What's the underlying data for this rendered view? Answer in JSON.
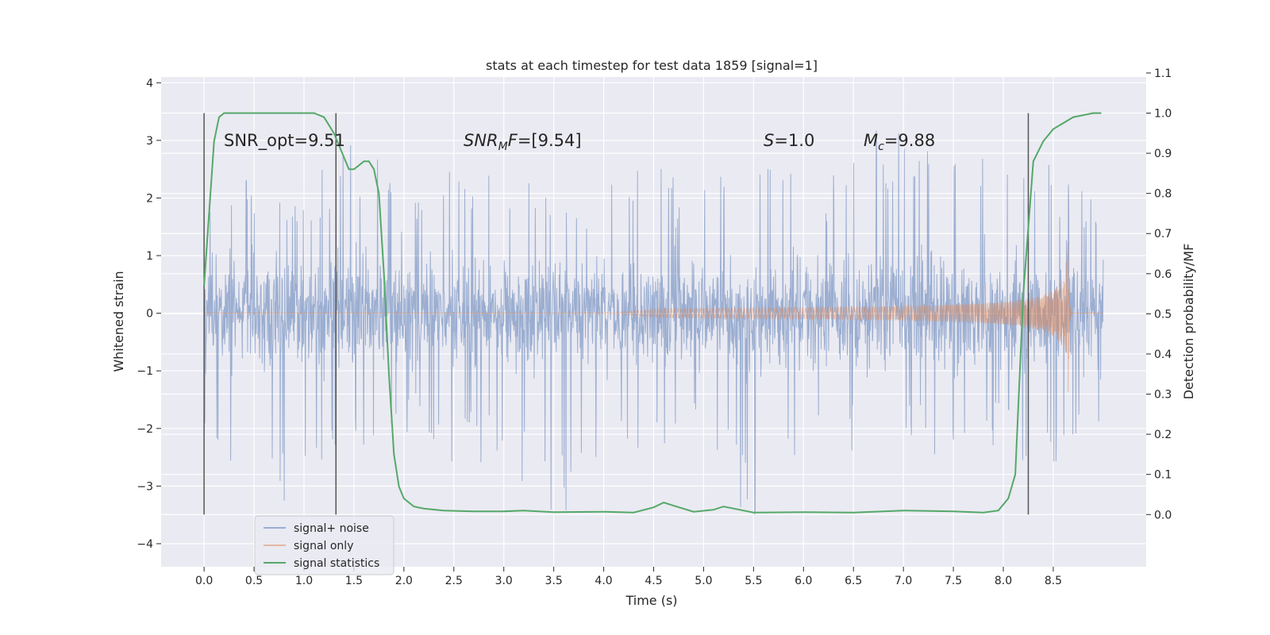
{
  "chart_data": {
    "type": "line",
    "title": "stats at each timestep for test data 1859 [signal=1]",
    "xlabel": "Time (s)",
    "ylabel_left": "Whitened strain",
    "ylabel_right": "Detection probability/MF",
    "xlim": [
      -0.43,
      9.43
    ],
    "ylim_left": [
      -4.4,
      4.1
    ],
    "ylim_right": [
      -0.13,
      1.09
    ],
    "x_ticks": [
      "0.0",
      "0.5",
      "1.0",
      "1.5",
      "2.0",
      "2.5",
      "3.0",
      "3.5",
      "4.0",
      "4.5",
      "5.0",
      "5.5",
      "6.0",
      "6.5",
      "7.0",
      "7.5",
      "8.0",
      "8.5"
    ],
    "y_ticks_left": [
      "−4",
      "−3",
      "−2",
      "−1",
      "0",
      "1",
      "2",
      "3",
      "4"
    ],
    "y_ticks_right": [
      "0.0",
      "0.1",
      "0.2",
      "0.3",
      "0.4",
      "0.5",
      "0.6",
      "0.7",
      "0.8",
      "0.9",
      "1.0",
      "1.1"
    ],
    "grid": true,
    "legend_placement": "lower-left",
    "annotations": {
      "snr_opt": "SNR_opt=9.51",
      "snr_mf": "=[9.54]",
      "s_value": "=1.0",
      "mc_value": "=9.88"
    },
    "vertical_markers_s": [
      0.0,
      1.32,
      8.25
    ],
    "series": [
      {
        "name": "signal+ noise",
        "color": "#4c72b0",
        "description_kind": "noisy strain, amplitude envelope",
        "envelope_x": [
          0.0,
          0.5,
          1.0,
          1.5,
          2.0,
          2.5,
          3.0,
          3.5,
          4.0,
          4.5,
          5.0,
          5.5,
          6.0,
          6.5,
          7.0,
          7.5,
          8.0,
          8.5,
          9.0
        ],
        "envelope_max": [
          2.5,
          2.3,
          2.4,
          3.5,
          2.2,
          2.6,
          2.5,
          2.5,
          2.4,
          2.6,
          2.3,
          2.6,
          2.5,
          2.7,
          3.8,
          3.6,
          2.6,
          2.6,
          1.8
        ],
        "envelope_min": [
          -2.3,
          -3.4,
          -3.4,
          -2.3,
          -2.4,
          -2.8,
          -2.5,
          -4.0,
          -2.6,
          -2.5,
          -2.6,
          -3.7,
          -2.5,
          -2.4,
          -2.5,
          -2.8,
          -2.4,
          -2.9,
          -1.8
        ]
      },
      {
        "name": "signal only",
        "color": "#dd8452",
        "description_kind": "chirp waveform",
        "chirp_start_s": 4.0,
        "merger_s": 8.65,
        "peak_amplitude": 1.5
      },
      {
        "name": "signal statistics",
        "color": "#55a868",
        "axis": "right",
        "x": [
          0.0,
          0.05,
          0.1,
          0.15,
          0.2,
          0.3,
          0.5,
          0.8,
          1.0,
          1.1,
          1.2,
          1.3,
          1.4,
          1.45,
          1.5,
          1.55,
          1.6,
          1.65,
          1.7,
          1.75,
          1.8,
          1.85,
          1.9,
          1.95,
          2.0,
          2.1,
          2.2,
          2.4,
          2.7,
          3.0,
          3.2,
          3.5,
          4.0,
          4.3,
          4.5,
          4.6,
          4.7,
          4.9,
          5.1,
          5.2,
          5.3,
          5.5,
          6.0,
          6.5,
          7.0,
          7.5,
          7.8,
          7.95,
          8.05,
          8.12,
          8.2,
          8.3,
          8.4,
          8.5,
          8.7,
          8.9,
          8.98
        ],
        "y": [
          0.57,
          0.75,
          0.93,
          0.99,
          1.0,
          1.0,
          1.0,
          1.0,
          1.0,
          1.0,
          0.99,
          0.95,
          0.89,
          0.86,
          0.86,
          0.87,
          0.88,
          0.88,
          0.86,
          0.8,
          0.6,
          0.35,
          0.15,
          0.07,
          0.04,
          0.02,
          0.015,
          0.01,
          0.008,
          0.008,
          0.01,
          0.006,
          0.007,
          0.005,
          0.018,
          0.03,
          0.022,
          0.007,
          0.012,
          0.02,
          0.015,
          0.005,
          0.006,
          0.005,
          0.01,
          0.008,
          0.005,
          0.01,
          0.04,
          0.1,
          0.55,
          0.88,
          0.93,
          0.96,
          0.99,
          1.0,
          1.0
        ]
      }
    ]
  }
}
